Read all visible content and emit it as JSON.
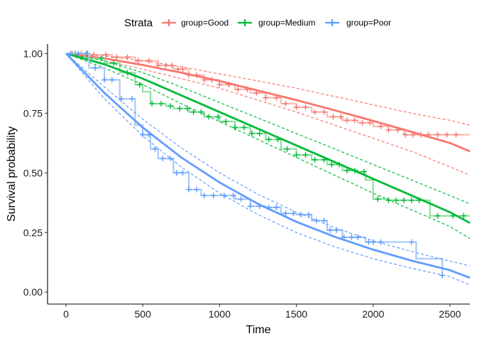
{
  "chart_data": {
    "type": "line",
    "title": "",
    "xlabel": "Time",
    "ylabel": "Survival probability",
    "xlim": [
      -120,
      2630
    ],
    "ylim": [
      -0.05,
      1.04
    ],
    "x_ticks": [
      0,
      500,
      1000,
      1500,
      2000,
      2500
    ],
    "x_tick_labels": [
      "0",
      "500",
      "1000",
      "1500",
      "2000",
      "2500"
    ],
    "y_ticks": [
      0.0,
      0.25,
      0.5,
      0.75,
      1.0
    ],
    "y_tick_labels": [
      "0.00",
      "0.25",
      "0.50",
      "0.75",
      "1.00"
    ],
    "grid": false,
    "legend": {
      "position": "top",
      "title": "Strata",
      "entries": [
        "group=Good",
        "group=Medium",
        "group=Poor"
      ]
    },
    "series": [
      {
        "name": "group=Good",
        "color": "#F8766D",
        "km_color": "#FDBBB4",
        "km_steps": [
          [
            0,
            1.0
          ],
          [
            150,
            0.995
          ],
          [
            300,
            0.985
          ],
          [
            450,
            0.97
          ],
          [
            600,
            0.95
          ],
          [
            700,
            0.935
          ],
          [
            800,
            0.91
          ],
          [
            900,
            0.89
          ],
          [
            1000,
            0.87
          ],
          [
            1100,
            0.85
          ],
          [
            1200,
            0.835
          ],
          [
            1300,
            0.815
          ],
          [
            1400,
            0.79
          ],
          [
            1500,
            0.775
          ],
          [
            1600,
            0.755
          ],
          [
            1700,
            0.735
          ],
          [
            1800,
            0.72
          ],
          [
            1900,
            0.71
          ],
          [
            2000,
            0.695
          ],
          [
            2100,
            0.68
          ],
          [
            2200,
            0.66
          ],
          [
            2630,
            0.66
          ]
        ],
        "censor_x": [
          40,
          100,
          180,
          260,
          330,
          400,
          470,
          540,
          600,
          650,
          690,
          730,
          760,
          800,
          850,
          900,
          950,
          1000,
          1060,
          1120,
          1180,
          1240,
          1300,
          1370,
          1430,
          1500,
          1560,
          1620,
          1680,
          1740,
          1790,
          1830,
          1880,
          1930,
          1980,
          2050,
          2100,
          2160,
          2210,
          2260,
          2310,
          2360,
          2420,
          2480,
          2540
        ],
        "fit": [
          [
            0,
            1.0
          ],
          [
            250,
            0.98
          ],
          [
            500,
            0.952
          ],
          [
            750,
            0.92
          ],
          [
            1000,
            0.885
          ],
          [
            1250,
            0.845
          ],
          [
            1500,
            0.805
          ],
          [
            1750,
            0.762
          ],
          [
            2000,
            0.718
          ],
          [
            2250,
            0.672
          ],
          [
            2500,
            0.625
          ],
          [
            2630,
            0.59
          ]
        ],
        "ci_upper": [
          [
            0,
            1.0
          ],
          [
            250,
            0.99
          ],
          [
            500,
            0.97
          ],
          [
            750,
            0.945
          ],
          [
            1000,
            0.915
          ],
          [
            1250,
            0.885
          ],
          [
            1500,
            0.855
          ],
          [
            1750,
            0.82
          ],
          [
            2000,
            0.785
          ],
          [
            2250,
            0.75
          ],
          [
            2500,
            0.72
          ],
          [
            2630,
            0.7
          ]
        ],
        "ci_lower": [
          [
            0,
            1.0
          ],
          [
            250,
            0.97
          ],
          [
            500,
            0.935
          ],
          [
            750,
            0.895
          ],
          [
            1000,
            0.855
          ],
          [
            1250,
            0.805
          ],
          [
            1500,
            0.755
          ],
          [
            1750,
            0.7
          ],
          [
            2000,
            0.645
          ],
          [
            2250,
            0.59
          ],
          [
            2500,
            0.525
          ],
          [
            2630,
            0.49
          ]
        ]
      },
      {
        "name": "group=Medium",
        "color": "#00BA38",
        "km_color": "#8FDFA3",
        "km_steps": [
          [
            0,
            1.0
          ],
          [
            150,
            0.98
          ],
          [
            250,
            0.96
          ],
          [
            350,
            0.92
          ],
          [
            450,
            0.87
          ],
          [
            500,
            0.84
          ],
          [
            550,
            0.79
          ],
          [
            650,
            0.78
          ],
          [
            700,
            0.77
          ],
          [
            800,
            0.755
          ],
          [
            900,
            0.735
          ],
          [
            1000,
            0.715
          ],
          [
            1100,
            0.69
          ],
          [
            1200,
            0.665
          ],
          [
            1300,
            0.64
          ],
          [
            1400,
            0.6
          ],
          [
            1500,
            0.575
          ],
          [
            1600,
            0.555
          ],
          [
            1700,
            0.535
          ],
          [
            1800,
            0.51
          ],
          [
            1900,
            0.505
          ],
          [
            1950,
            0.47
          ],
          [
            2000,
            0.39
          ],
          [
            2100,
            0.385
          ],
          [
            2200,
            0.385
          ],
          [
            2300,
            0.385
          ],
          [
            2370,
            0.32
          ],
          [
            2630,
            0.32
          ]
        ],
        "censor_x": [
          60,
          140,
          230,
          310,
          400,
          480,
          560,
          620,
          680,
          740,
          790,
          830,
          880,
          930,
          990,
          1040,
          1100,
          1160,
          1210,
          1260,
          1320,
          1380,
          1440,
          1500,
          1560,
          1620,
          1680,
          1730,
          1780,
          1830,
          1880,
          1940,
          2030,
          2100,
          2150,
          2200,
          2250,
          2300,
          2420,
          2520,
          2590
        ],
        "fit": [
          [
            0,
            1.0
          ],
          [
            250,
            0.955
          ],
          [
            500,
            0.895
          ],
          [
            750,
            0.825
          ],
          [
            1000,
            0.755
          ],
          [
            1250,
            0.685
          ],
          [
            1500,
            0.615
          ],
          [
            1750,
            0.545
          ],
          [
            2000,
            0.475
          ],
          [
            2250,
            0.405
          ],
          [
            2500,
            0.335
          ],
          [
            2630,
            0.29
          ]
        ],
        "ci_upper": [
          [
            0,
            1.0
          ],
          [
            250,
            0.97
          ],
          [
            500,
            0.92
          ],
          [
            750,
            0.86
          ],
          [
            1000,
            0.795
          ],
          [
            1250,
            0.73
          ],
          [
            1500,
            0.665
          ],
          [
            1750,
            0.6
          ],
          [
            2000,
            0.535
          ],
          [
            2250,
            0.47
          ],
          [
            2500,
            0.405
          ],
          [
            2630,
            0.37
          ]
        ],
        "ci_lower": [
          [
            0,
            1.0
          ],
          [
            250,
            0.94
          ],
          [
            500,
            0.87
          ],
          [
            750,
            0.79
          ],
          [
            1000,
            0.715
          ],
          [
            1250,
            0.64
          ],
          [
            1500,
            0.565
          ],
          [
            1750,
            0.49
          ],
          [
            2000,
            0.415
          ],
          [
            2250,
            0.345
          ],
          [
            2500,
            0.275
          ],
          [
            2630,
            0.225
          ]
        ]
      },
      {
        "name": "group=Poor",
        "color": "#619CFF",
        "km_color": "#A9C9F6",
        "km_steps": [
          [
            0,
            1.0
          ],
          [
            150,
            0.94
          ],
          [
            250,
            0.89
          ],
          [
            350,
            0.81
          ],
          [
            450,
            0.7
          ],
          [
            500,
            0.66
          ],
          [
            550,
            0.6
          ],
          [
            600,
            0.56
          ],
          [
            700,
            0.5
          ],
          [
            800,
            0.43
          ],
          [
            880,
            0.405
          ],
          [
            1000,
            0.405
          ],
          [
            1100,
            0.39
          ],
          [
            1200,
            0.36
          ],
          [
            1300,
            0.355
          ],
          [
            1400,
            0.33
          ],
          [
            1500,
            0.325
          ],
          [
            1600,
            0.3
          ],
          [
            1700,
            0.26
          ],
          [
            1800,
            0.23
          ],
          [
            1850,
            0.23
          ],
          [
            1950,
            0.21
          ],
          [
            2100,
            0.21
          ],
          [
            2200,
            0.21
          ],
          [
            2280,
            0.14
          ],
          [
            2450,
            0.07
          ]
        ],
        "censor_x": [
          30,
          80,
          130,
          190,
          250,
          300,
          360,
          430,
          500,
          540,
          580,
          630,
          680,
          720,
          760,
          800,
          850,
          900,
          960,
          1030,
          1090,
          1140,
          1200,
          1260,
          1320,
          1370,
          1430,
          1480,
          1530,
          1580,
          1630,
          1680,
          1720,
          1760,
          1810,
          1860,
          1900,
          1970,
          2000,
          2050,
          2250,
          2450
        ],
        "fit": [
          [
            0,
            1.0
          ],
          [
            250,
            0.835
          ],
          [
            500,
            0.69
          ],
          [
            750,
            0.565
          ],
          [
            1000,
            0.46
          ],
          [
            1250,
            0.37
          ],
          [
            1500,
            0.295
          ],
          [
            1750,
            0.232
          ],
          [
            2000,
            0.178
          ],
          [
            2250,
            0.132
          ],
          [
            2500,
            0.092
          ],
          [
            2630,
            0.06
          ]
        ],
        "ci_upper": [
          [
            0,
            1.0
          ],
          [
            250,
            0.86
          ],
          [
            500,
            0.725
          ],
          [
            750,
            0.605
          ],
          [
            1000,
            0.5
          ],
          [
            1250,
            0.41
          ],
          [
            1500,
            0.335
          ],
          [
            1750,
            0.27
          ],
          [
            2000,
            0.215
          ],
          [
            2250,
            0.17
          ],
          [
            2500,
            0.13
          ],
          [
            2630,
            0.11
          ]
        ],
        "ci_lower": [
          [
            0,
            1.0
          ],
          [
            250,
            0.81
          ],
          [
            500,
            0.655
          ],
          [
            750,
            0.525
          ],
          [
            1000,
            0.415
          ],
          [
            1250,
            0.325
          ],
          [
            1500,
            0.25
          ],
          [
            1750,
            0.19
          ],
          [
            2000,
            0.14
          ],
          [
            2250,
            0.1
          ],
          [
            2500,
            0.065
          ],
          [
            2630,
            0.03
          ]
        ]
      }
    ]
  }
}
